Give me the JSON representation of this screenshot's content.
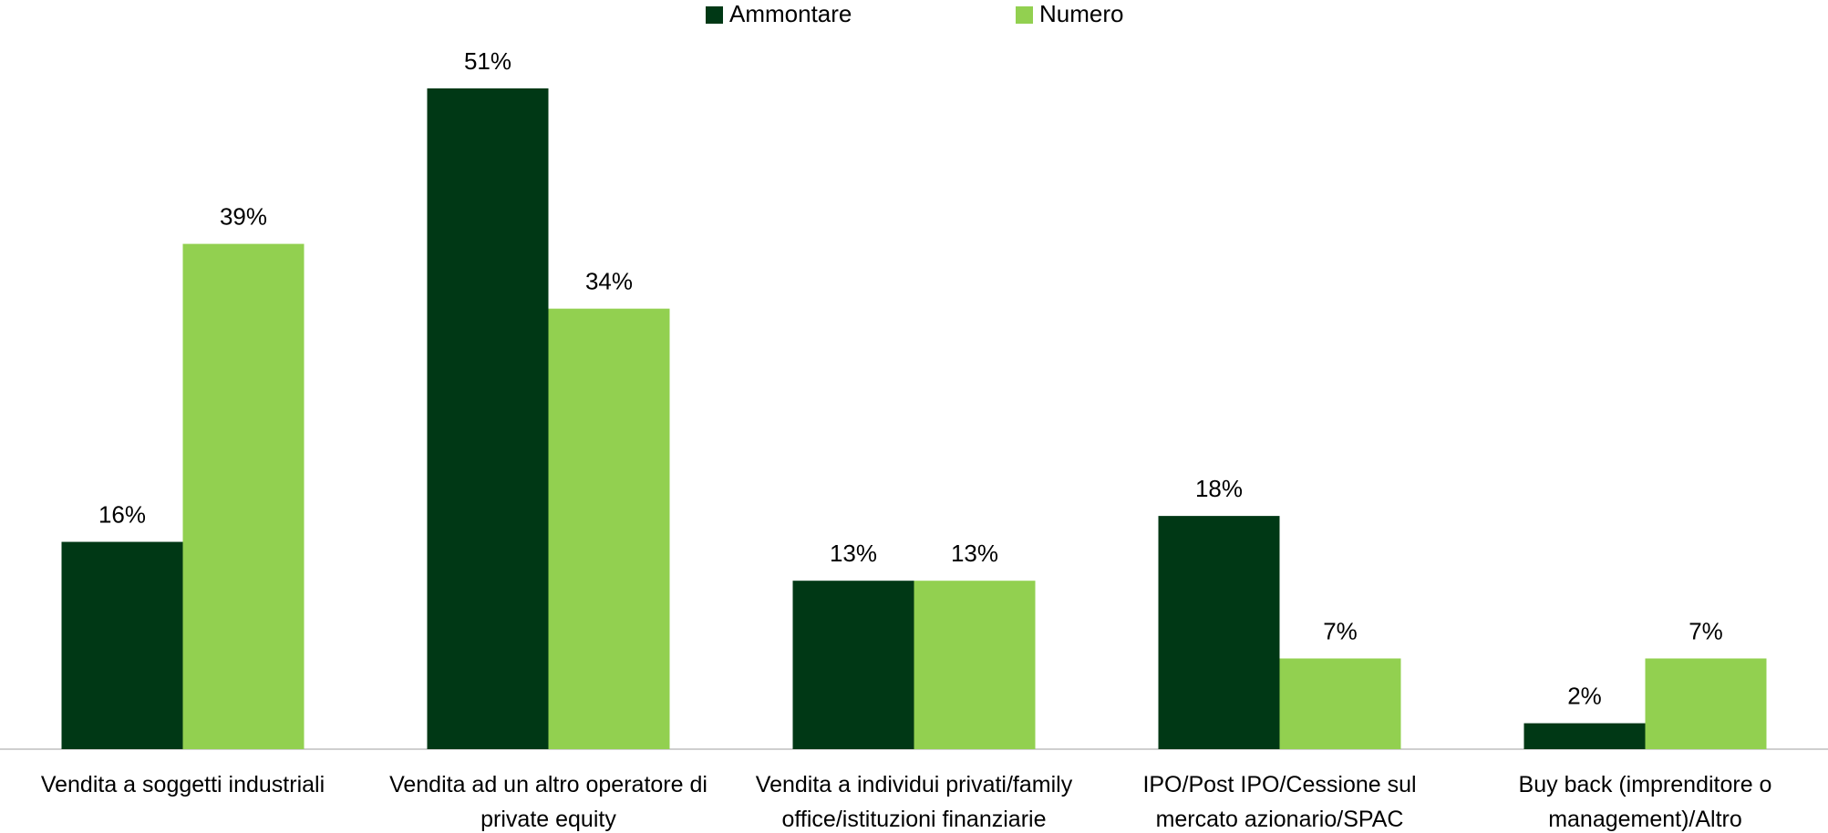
{
  "chart_data": {
    "type": "bar",
    "categories": [
      "Vendita a soggetti industriali",
      "Vendita ad un altro operatore di private equity",
      "Vendita a individui privati/family office/istituzioni finanziarie",
      "IPO/Post IPO/Cessione sul mercato azionario/SPAC",
      "Buy back (imprenditore o management)/Altro"
    ],
    "series": [
      {
        "name": "Ammontare",
        "color": "#003815",
        "values": [
          16,
          51,
          13,
          18,
          2
        ],
        "value_labels": [
          "16%",
          "51%",
          "13%",
          "18%",
          "2%"
        ]
      },
      {
        "name": "Numero",
        "color": "#92d050",
        "values": [
          39,
          34,
          13,
          7,
          7
        ],
        "value_labels": [
          "39%",
          "34%",
          "13%",
          "7%",
          "7%"
        ]
      }
    ],
    "legend": "top"
  }
}
